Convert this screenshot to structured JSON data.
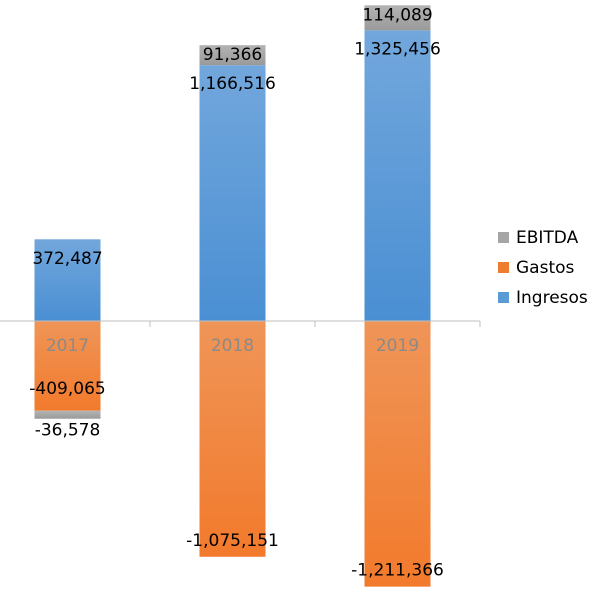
{
  "chart_data": {
    "type": "bar",
    "stacked": true,
    "categories": [
      "2017",
      "2018",
      "2019"
    ],
    "series": [
      {
        "name": "Ingresos",
        "values": [
          372487,
          1166516,
          1325456
        ],
        "labels": [
          "372,487",
          "1,166,516",
          "1,325,456"
        ],
        "color": "#5b9bd5"
      },
      {
        "name": "Gastos",
        "values": [
          -409065,
          -1075151,
          -1211366
        ],
        "labels": [
          "-409,065",
          "-1,075,151",
          "-1,211,366"
        ],
        "color": "#ed7d31"
      },
      {
        "name": "EBITDA",
        "values": [
          -36578,
          91366,
          114089
        ],
        "labels": [
          "-36,578",
          "91,366",
          "114,089"
        ],
        "color": "#a5a5a5"
      }
    ],
    "legend": {
      "position": "right",
      "order": [
        "EBITDA",
        "Gastos",
        "Ingresos"
      ]
    },
    "ylim": [
      -1300000,
      1500000
    ],
    "grid": false
  }
}
